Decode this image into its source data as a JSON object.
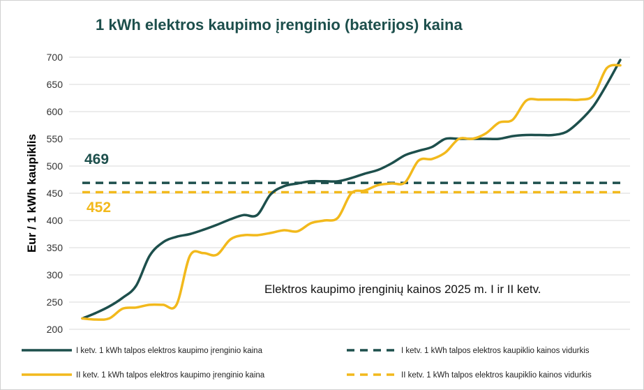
{
  "chart_data": {
    "type": "line",
    "title": "1 kWh elektros kaupimo įrenginio (baterijos) kaina",
    "ylabel": "Eur / 1 kWh kaupiklis",
    "xlabel": "",
    "ylim": [
      200,
      700
    ],
    "yticks": [
      "200",
      "250",
      "300",
      "350",
      "400",
      "450",
      "500",
      "550",
      "600",
      "650",
      "700"
    ],
    "grid": true,
    "annotation": "Elektros kaupimo įrenginių kainos 2025 m. I ir II ketv.",
    "avg_labels": {
      "q1": "469",
      "q2": "452"
    },
    "legend_placement": "bottom",
    "colors": {
      "q1": "#1d4f4c",
      "q2": "#f2b91c",
      "grid": "#d9d9d9",
      "title": "#1d4f4c"
    },
    "series": [
      {
        "name": "I ketv. 1 kWh talpos elektros kaupimo įrenginio kaina",
        "key": "q1",
        "style": "solid",
        "values": [
          220,
          230,
          242,
          258,
          280,
          335,
          360,
          370,
          375,
          383,
          392,
          402,
          410,
          410,
          448,
          463,
          468,
          472,
          472,
          472,
          478,
          486,
          493,
          505,
          520,
          528,
          535,
          550,
          550,
          550,
          550,
          550,
          555,
          557,
          557,
          557,
          563,
          583,
          610,
          650,
          695
        ]
      },
      {
        "name": "II ketv. 1 kWh talpos elektros kaupimo įrenginio kaina",
        "key": "q2",
        "style": "solid",
        "values": [
          220,
          218,
          220,
          238,
          240,
          245,
          245,
          245,
          335,
          340,
          337,
          365,
          373,
          373,
          377,
          382,
          380,
          395,
          400,
          405,
          450,
          455,
          465,
          468,
          470,
          510,
          513,
          525,
          550,
          550,
          560,
          580,
          585,
          620,
          622,
          622,
          622,
          622,
          630,
          680,
          685
        ]
      },
      {
        "name": "I ketv. 1 kWh talpos elektros kaupiklio kainos vidurkis",
        "key": "q1",
        "style": "dashed",
        "value": 469
      },
      {
        "name": "II ketv. 1 kWh talpos elektros kaupiklio kainos vidurkis",
        "key": "q2",
        "style": "dashed",
        "value": 452
      }
    ]
  }
}
